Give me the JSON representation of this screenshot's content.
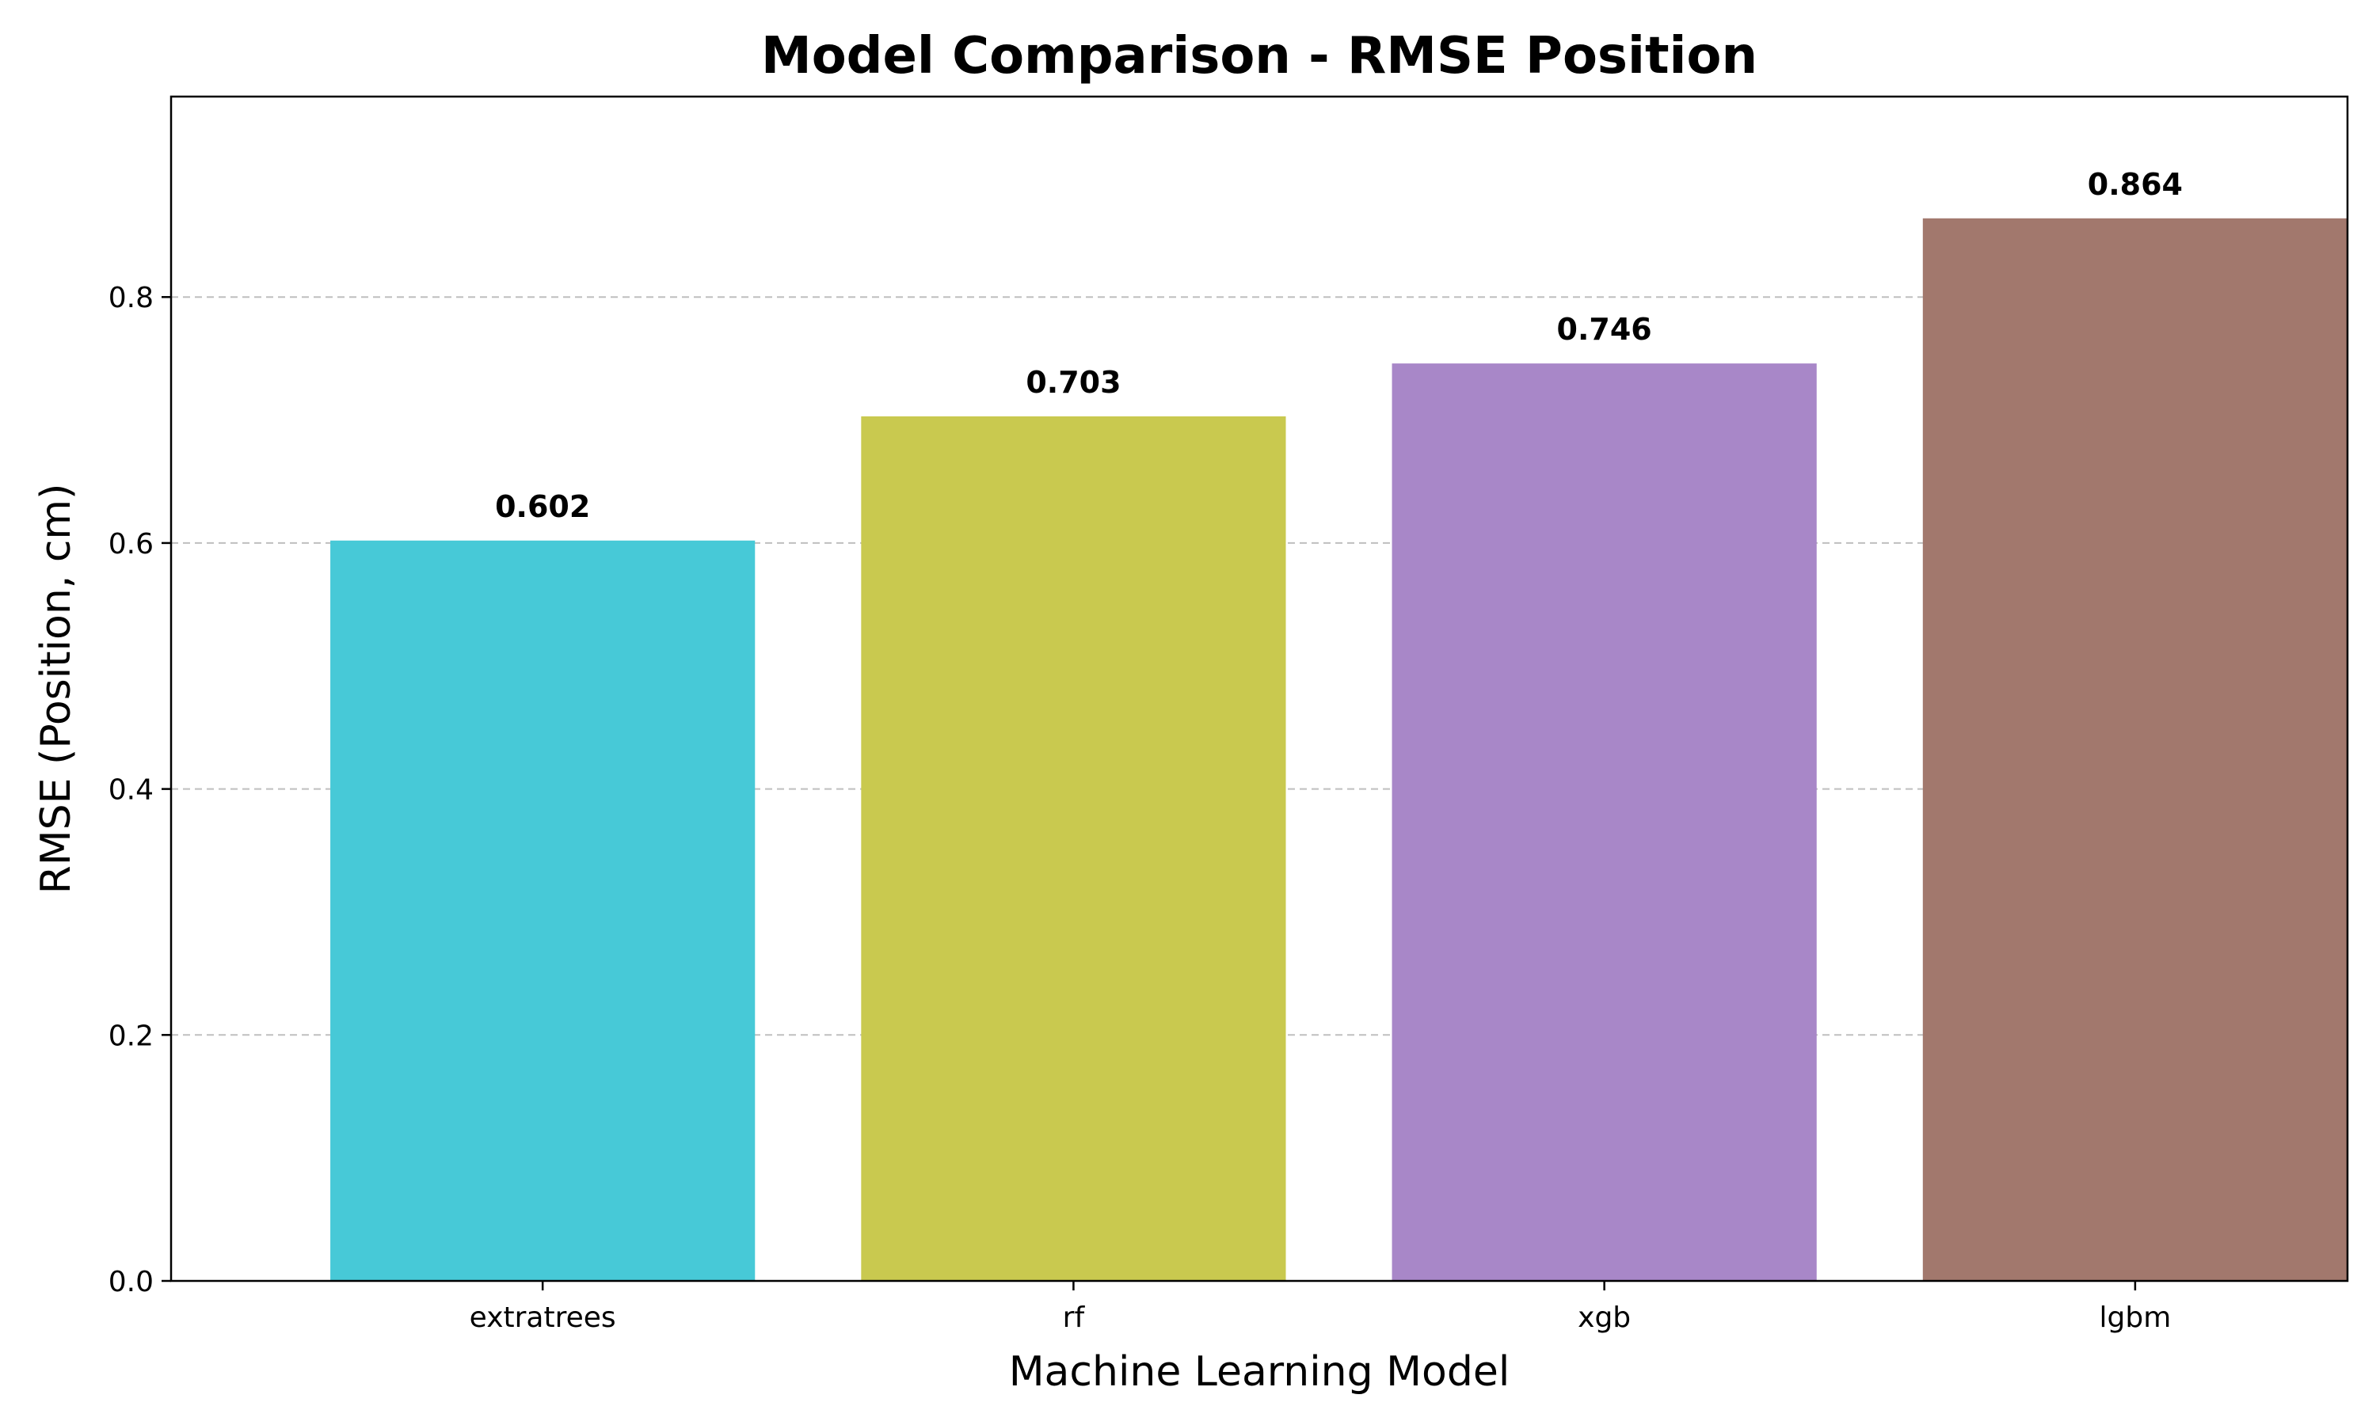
{
  "chart_data": {
    "type": "bar",
    "title": "Model Comparison - RMSE Position",
    "xlabel": "Machine Learning Model",
    "ylabel": "RMSE (Position, cm)",
    "categories": [
      "extratrees",
      "rf",
      "xgb",
      "lgbm"
    ],
    "values": [
      0.602,
      0.703,
      0.746,
      0.864
    ],
    "value_labels": [
      "0.602",
      "0.703",
      "0.746",
      "0.864"
    ],
    "colors": [
      "#47c9d7",
      "#c9c94f",
      "#a887c8",
      "#a2786d"
    ],
    "ylim": [
      0,
      0.963
    ],
    "yticks": [
      0.0,
      0.2,
      0.4,
      0.6,
      0.8
    ],
    "ytick_labels": [
      "0.0",
      "0.2",
      "0.4",
      "0.6",
      "0.8"
    ],
    "grid": "y-dashed",
    "legend": "none"
  }
}
